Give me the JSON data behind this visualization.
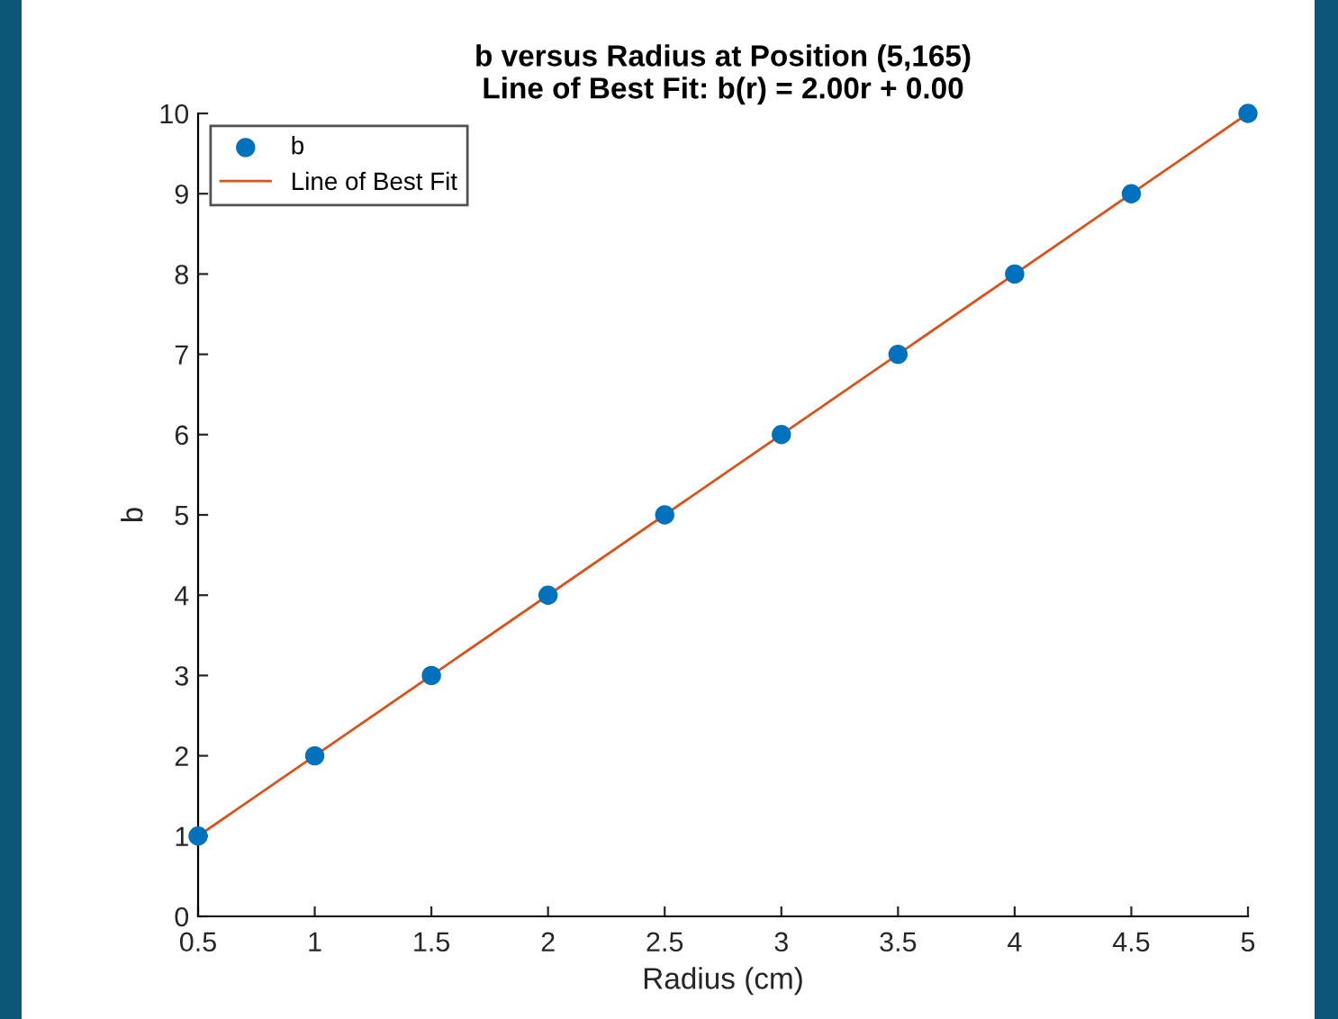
{
  "chart_data": {
    "type": "scatter",
    "title": "b versus Radius at Position (5,165)",
    "subtitle": "Line of Best Fit: b(r) = 2.00r + 0.00",
    "xlabel": "Radius (cm)",
    "ylabel": "b",
    "x": [
      0.5,
      1,
      1.5,
      2,
      2.5,
      3,
      3.5,
      4,
      4.5,
      5
    ],
    "series": [
      {
        "name": "b",
        "color": "#0072bd",
        "marker": "circle",
        "values": [
          1,
          2,
          3,
          4,
          5,
          6,
          7,
          8,
          9,
          10
        ]
      },
      {
        "name": "Line of Best Fit",
        "type": "line",
        "color": "#d95319",
        "marker": "none",
        "line_style": "solid",
        "x": [
          0.5,
          5
        ],
        "values": [
          1,
          10
        ]
      }
    ],
    "xlim": [
      0.5,
      5
    ],
    "ylim": [
      0,
      10
    ],
    "xticks": [
      0.5,
      1,
      1.5,
      2,
      2.5,
      3,
      3.5,
      4,
      4.5,
      5
    ],
    "yticks": [
      0,
      1,
      2,
      3,
      4,
      5,
      6,
      7,
      8,
      9,
      10
    ],
    "grid": false,
    "legend": "top left"
  }
}
